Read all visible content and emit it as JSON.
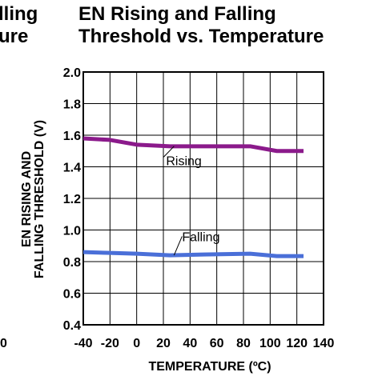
{
  "left_fragment": {
    "line1": "lling",
    "line2": "ure",
    "tick": "0"
  },
  "chart_data": {
    "type": "line",
    "title_line1": "EN Rising and Falling",
    "title_line2": "Threshold vs. Temperature",
    "xlabel": "TEMPERATURE (ºC)",
    "ylabel_line1": "EN RISING AND",
    "ylabel_line2": "FALLING THRESHOLD (V)",
    "xlim": [
      -40,
      140
    ],
    "ylim": [
      0.4,
      2.0
    ],
    "x_ticks": [
      -40,
      -20,
      0,
      20,
      40,
      60,
      80,
      100,
      120,
      140
    ],
    "x_tick_labels": [
      "-40",
      "-20",
      "0",
      "20",
      "40",
      "60",
      "80",
      "100",
      "120",
      "140"
    ],
    "y_ticks": [
      0.4,
      0.6,
      0.8,
      1.0,
      1.2,
      1.4,
      1.6,
      1.8,
      2.0
    ],
    "y_tick_labels": [
      "0.4",
      "0.6",
      "0.8",
      "1.0",
      "1.2",
      "1.4",
      "1.6",
      "1.8",
      "2.0"
    ],
    "grid": true,
    "series": [
      {
        "name": "Rising",
        "color": "#8b1a8b",
        "x": [
          -40,
          -20,
          0,
          25,
          50,
          85,
          105,
          125
        ],
        "y": [
          1.58,
          1.57,
          1.54,
          1.53,
          1.53,
          1.53,
          1.5,
          1.5
        ]
      },
      {
        "name": "Falling",
        "color": "#4a6fd8",
        "x": [
          -40,
          -20,
          0,
          25,
          50,
          85,
          105,
          125
        ],
        "y": [
          0.86,
          0.855,
          0.85,
          0.84,
          0.845,
          0.85,
          0.835,
          0.835
        ]
      }
    ],
    "annotations": [
      {
        "text": "Rising",
        "series": "Rising"
      },
      {
        "text": "Falling",
        "series": "Falling"
      }
    ]
  }
}
